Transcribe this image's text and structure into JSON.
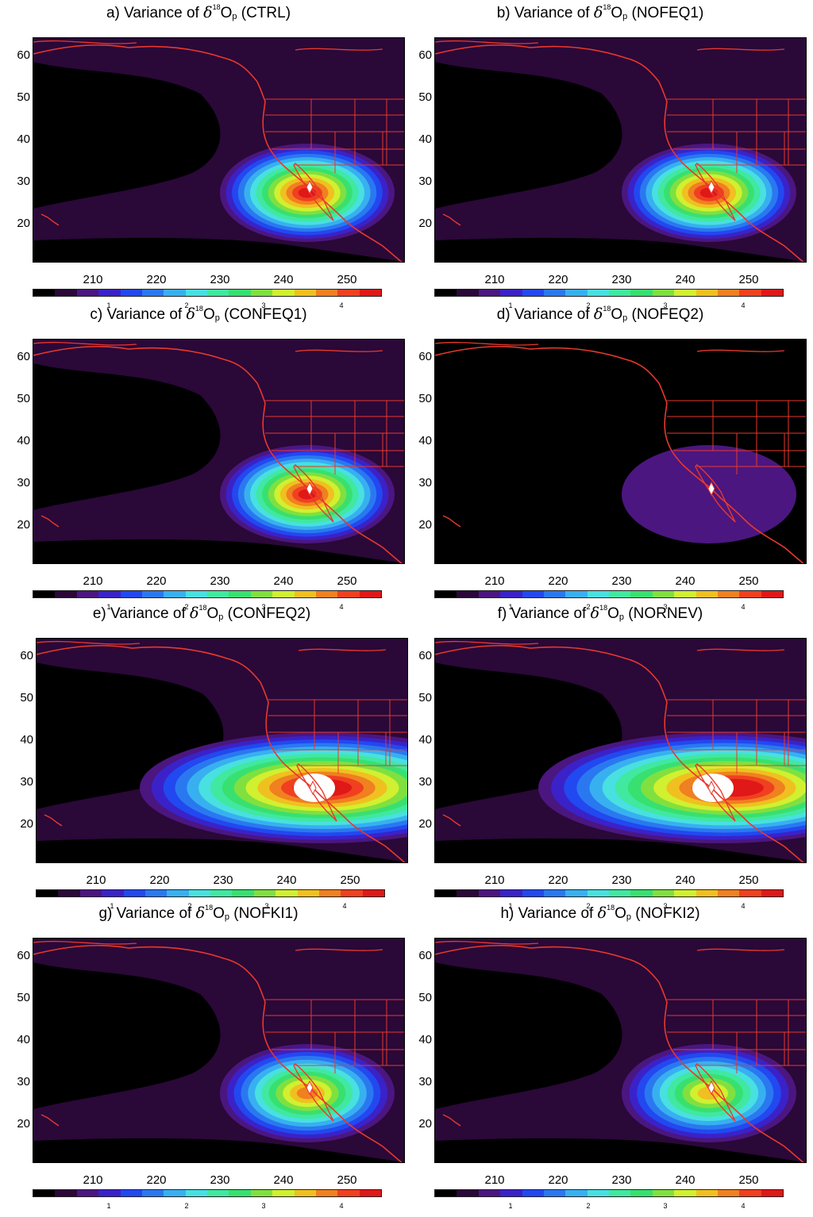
{
  "chart_data": {
    "type": "heatmap",
    "yticks": [
      "60",
      "50",
      "40",
      "30",
      "20"
    ],
    "colorbar": {
      "top_labels": [
        "210",
        "220",
        "230",
        "240",
        "250"
      ],
      "bottom_labels": [
        "1",
        "2",
        "3",
        "4"
      ],
      "colors": [
        "#000000",
        "#2a0838",
        "#4b1680",
        "#3a22c8",
        "#2248f0",
        "#2a78f0",
        "#38b0f0",
        "#48e0e0",
        "#40e8a0",
        "#38e070",
        "#80e040",
        "#d0f030",
        "#f0c020",
        "#f08020",
        "#f04020",
        "#e01818"
      ]
    },
    "panels": [
      {
        "title_prefix": "a) Variance of ",
        "delta": "δ",
        "sup": "18",
        "O": "O",
        "sub": "p",
        "run": " (CTRL)",
        "peak_level": 15
      },
      {
        "title_prefix": "b) Variance of ",
        "delta": "δ",
        "sup": "18",
        "O": "O",
        "sub": "p",
        "run": " (NOFEQ1)",
        "peak_level": 15
      },
      {
        "title_prefix": "c) Variance of ",
        "delta": "δ",
        "sup": "18",
        "O": "O",
        "sub": "p",
        "run": " (CONFEQ1)",
        "peak_level": 15
      },
      {
        "title_prefix": "d) Variance of ",
        "delta": "δ",
        "sup": "18",
        "O": "O",
        "sub": "p",
        "run": " (NOFEQ2)",
        "peak_level": 2
      },
      {
        "title_prefix": "e) Variance of ",
        "delta": "δ",
        "sup": "18",
        "O": "O",
        "sub": "p",
        "run": " (CONFEQ2)",
        "peak_level": 16
      },
      {
        "title_prefix": "f) Variance of ",
        "delta": "δ",
        "sup": "18",
        "O": "O",
        "sub": "p",
        "run": " (NORNEV)",
        "peak_level": 16
      },
      {
        "title_prefix": "g) Variance of ",
        "delta": "δ",
        "sup": "18",
        "O": "O",
        "sub": "p",
        "run": " (NOFKI1)",
        "peak_level": 13
      },
      {
        "title_prefix": "h) Variance of ",
        "delta": "δ",
        "sup": "18",
        "O": "O",
        "sub": "p",
        "run": " (NOFKI2)",
        "peak_level": 12
      }
    ]
  }
}
